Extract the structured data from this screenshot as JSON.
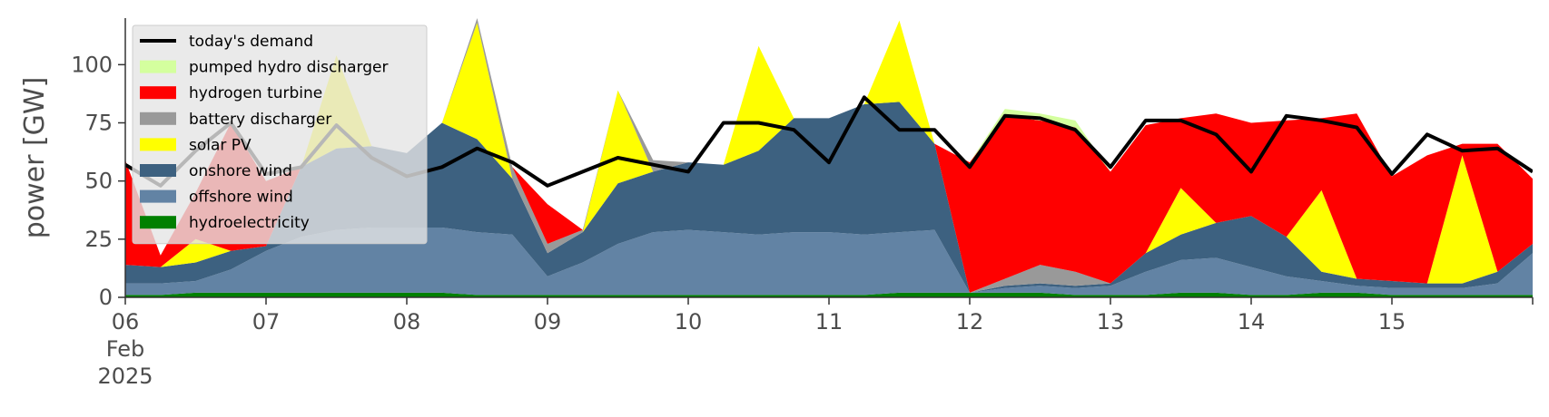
{
  "chart_data": {
    "type": "area",
    "stacked": true,
    "ylabel": "power [GW]",
    "ylim": [
      0,
      120
    ],
    "yticks": [
      0,
      25,
      50,
      75,
      100
    ],
    "xlim": [
      "2025-02-06 00:00",
      "2025-02-16 00:00"
    ],
    "xticks": [
      {
        "date": "2025-02-06",
        "label": [
          "06",
          "Feb",
          "2025"
        ]
      },
      {
        "date": "2025-02-07",
        "label": [
          "07"
        ]
      },
      {
        "date": "2025-02-08",
        "label": [
          "08"
        ]
      },
      {
        "date": "2025-02-09",
        "label": [
          "09"
        ]
      },
      {
        "date": "2025-02-10",
        "label": [
          "10"
        ]
      },
      {
        "date": "2025-02-11",
        "label": [
          "11"
        ]
      },
      {
        "date": "2025-02-12",
        "label": [
          "12"
        ]
      },
      {
        "date": "2025-02-13",
        "label": [
          "13"
        ]
      },
      {
        "date": "2025-02-14",
        "label": [
          "14"
        ]
      },
      {
        "date": "2025-02-15",
        "label": [
          "15"
        ]
      }
    ],
    "grid": false,
    "legend_position": "top-left",
    "x": [
      "2025-02-06 00:00",
      "2025-02-06 06:00",
      "2025-02-06 12:00",
      "2025-02-06 18:00",
      "2025-02-07 00:00",
      "2025-02-07 06:00",
      "2025-02-07 12:00",
      "2025-02-07 18:00",
      "2025-02-08 00:00",
      "2025-02-08 06:00",
      "2025-02-08 12:00",
      "2025-02-08 18:00",
      "2025-02-09 00:00",
      "2025-02-09 06:00",
      "2025-02-09 12:00",
      "2025-02-09 18:00",
      "2025-02-10 00:00",
      "2025-02-10 06:00",
      "2025-02-10 12:00",
      "2025-02-10 18:00",
      "2025-02-11 00:00",
      "2025-02-11 06:00",
      "2025-02-11 12:00",
      "2025-02-11 18:00",
      "2025-02-12 00:00",
      "2025-02-12 06:00",
      "2025-02-12 12:00",
      "2025-02-12 18:00",
      "2025-02-13 00:00",
      "2025-02-13 06:00",
      "2025-02-13 12:00",
      "2025-02-13 18:00",
      "2025-02-14 00:00",
      "2025-02-14 06:00",
      "2025-02-14 12:00",
      "2025-02-14 18:00",
      "2025-02-15 00:00",
      "2025-02-15 06:00",
      "2025-02-15 12:00",
      "2025-02-15 18:00",
      "2025-02-16 00:00"
    ],
    "series": [
      {
        "name": "hydroelectricity",
        "color": "#008000",
        "values": [
          1,
          1,
          2,
          2,
          2,
          2,
          2,
          2,
          2,
          2,
          1,
          1,
          1,
          1,
          1,
          1,
          1,
          1,
          1,
          1,
          1,
          1,
          2,
          2,
          2,
          2,
          2,
          1,
          1,
          1,
          2,
          2,
          1,
          1,
          2,
          2,
          1,
          1,
          1,
          1,
          1
        ]
      },
      {
        "name": "offshore wind",
        "color": "#6283a4",
        "values": [
          5,
          5,
          5,
          10,
          18,
          24,
          27,
          28,
          28,
          28,
          27,
          26,
          8,
          14,
          22,
          27,
          28,
          27,
          26,
          27,
          27,
          26,
          26,
          27,
          0,
          2,
          3,
          3,
          4,
          10,
          14,
          15,
          12,
          8,
          5,
          3,
          3,
          3,
          3,
          5,
          18
        ]
      },
      {
        "name": "onshore wind",
        "color": "#3d6180",
        "values": [
          8,
          7,
          8,
          8,
          2,
          30,
          35,
          35,
          32,
          45,
          40,
          24,
          10,
          13,
          26,
          26,
          29,
          29,
          36,
          49,
          49,
          56,
          56,
          37,
          0,
          1,
          1,
          1,
          1,
          8,
          11,
          15,
          22,
          17,
          4,
          3,
          3,
          2,
          2,
          5,
          4
        ]
      },
      {
        "name": "solar PV",
        "color": "#ffff00",
        "values": [
          0,
          0,
          10,
          0,
          0,
          0,
          40,
          0,
          0,
          0,
          50,
          0,
          0,
          0,
          40,
          0,
          0,
          0,
          45,
          0,
          0,
          0,
          35,
          0,
          0,
          0,
          0,
          0,
          0,
          0,
          20,
          0,
          0,
          0,
          35,
          0,
          0,
          0,
          55,
          0,
          0
        ]
      },
      {
        "name": "battery discharger",
        "color": "#999999",
        "values": [
          0,
          0,
          0,
          0,
          0,
          0,
          0,
          0,
          0,
          0,
          2,
          5,
          4,
          1,
          0,
          5,
          0,
          0,
          0,
          0,
          0,
          0,
          0,
          0,
          0,
          3,
          8,
          6,
          0,
          0,
          0,
          0,
          0,
          0,
          0,
          0,
          0,
          0,
          0,
          0,
          0
        ]
      },
      {
        "name": "hydrogen turbine",
        "color": "#ff0000",
        "values": [
          45,
          5,
          20,
          55,
          28,
          0,
          0,
          0,
          0,
          0,
          0,
          0,
          17,
          0,
          0,
          0,
          0,
          0,
          0,
          0,
          0,
          0,
          0,
          0,
          56,
          70,
          62,
          62,
          48,
          55,
          30,
          47,
          40,
          50,
          31,
          71,
          45,
          55,
          5,
          55,
          28
        ]
      },
      {
        "name": "pumped hydro discharger",
        "color": "#d4ff9e",
        "values": [
          0,
          0,
          0,
          0,
          0,
          0,
          0,
          0,
          0,
          0,
          0,
          0,
          0,
          0,
          0,
          0,
          0,
          0,
          0,
          0,
          0,
          0,
          0,
          0,
          0,
          3,
          3,
          3,
          0,
          0,
          0,
          0,
          0,
          0,
          0,
          0,
          0,
          0,
          0,
          0,
          0
        ]
      }
    ],
    "demand": {
      "name": "today's demand",
      "color": "#000000",
      "values": [
        57,
        48,
        63,
        75,
        53,
        56,
        74,
        60,
        52,
        56,
        64,
        58,
        48,
        54,
        60,
        57,
        54,
        75,
        75,
        72,
        58,
        86,
        72,
        72,
        56,
        78,
        77,
        72,
        56,
        76,
        76,
        70,
        54,
        78,
        76,
        73,
        53,
        70,
        63,
        64,
        54
      ]
    }
  }
}
